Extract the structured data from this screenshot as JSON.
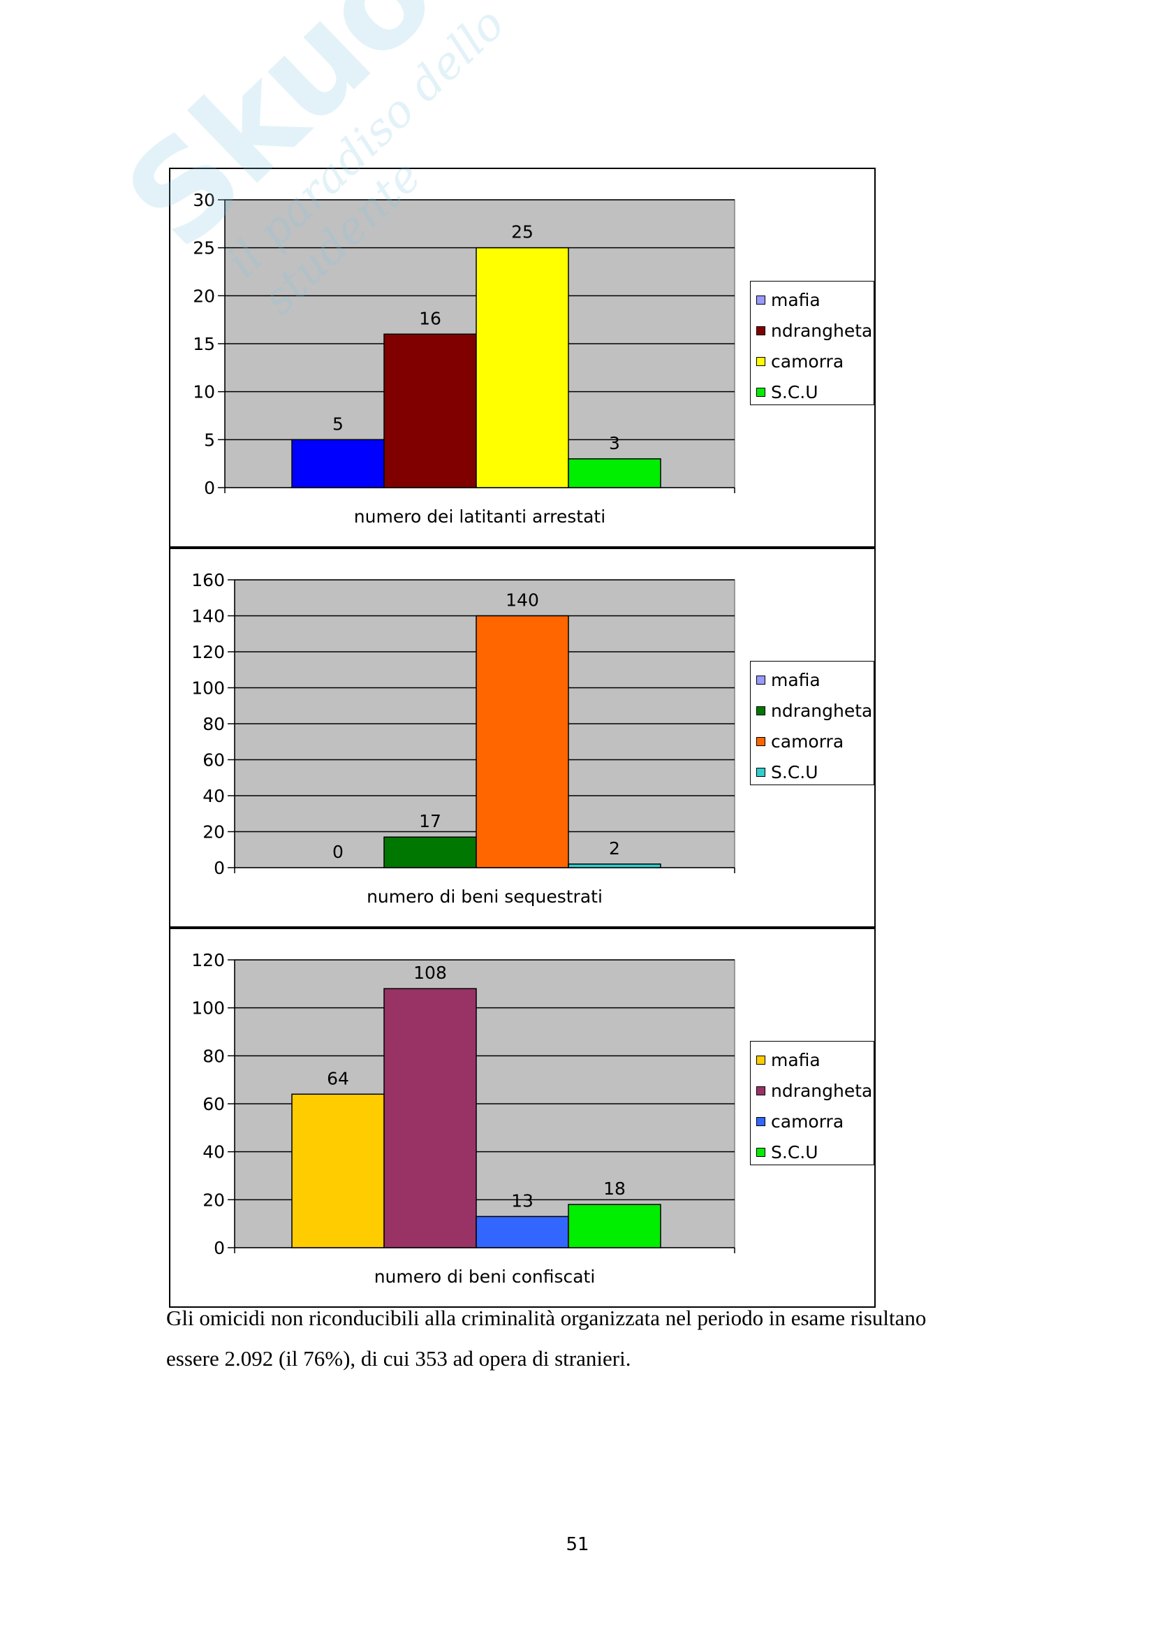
{
  "chart_data": [
    {
      "type": "bar",
      "xlabel": "numero dei latitanti arrestati",
      "categories": [
        "mafia",
        "ndrangheta",
        "camorra",
        "S.C.U"
      ],
      "values": [
        5,
        16,
        25,
        3
      ],
      "colors": [
        "#0000ff",
        "#800000",
        "#ffff00",
        "#00ee00"
      ],
      "value_labels": [
        "5",
        "16",
        "25",
        "3"
      ],
      "ylim": [
        0,
        30
      ],
      "yticks": [
        0,
        5,
        10,
        15,
        20,
        25,
        30
      ],
      "grid": true,
      "plot_background": "#c0c0c0",
      "legend": {
        "position": "right",
        "items": [
          {
            "label": "mafia",
            "color": "#9999ff"
          },
          {
            "label": "ndrangheta",
            "color": "#800000"
          },
          {
            "label": "camorra",
            "color": "#ffff00"
          },
          {
            "label": "S.C.U",
            "color": "#00ee00"
          }
        ]
      }
    },
    {
      "type": "bar",
      "xlabel": "numero di beni sequestrati",
      "categories": [
        "mafia",
        "ndrangheta",
        "camorra",
        "S.C.U"
      ],
      "values": [
        0,
        17,
        140,
        2
      ],
      "colors": [
        "#9999ff",
        "#007700",
        "#ff6600",
        "#33cccc"
      ],
      "value_labels": [
        "0",
        "17",
        "140",
        "2"
      ],
      "ylim": [
        0,
        160
      ],
      "yticks": [
        0,
        20,
        40,
        60,
        80,
        100,
        120,
        140,
        160
      ],
      "grid": true,
      "plot_background": "#c0c0c0",
      "legend": {
        "position": "right",
        "items": [
          {
            "label": "mafia",
            "color": "#9999ff"
          },
          {
            "label": "ndrangheta",
            "color": "#007700"
          },
          {
            "label": "camorra",
            "color": "#ff6600"
          },
          {
            "label": "S.C.U",
            "color": "#33cccc"
          }
        ]
      }
    },
    {
      "type": "bar",
      "xlabel": "numero di beni confiscati",
      "categories": [
        "mafia",
        "ndrangheta",
        "camorra",
        "S.C.U"
      ],
      "values": [
        64,
        108,
        13,
        18
      ],
      "colors": [
        "#ffcc00",
        "#993366",
        "#3366ff",
        "#00ee00"
      ],
      "value_labels": [
        "64",
        "108",
        "13",
        "18"
      ],
      "ylim": [
        0,
        120
      ],
      "yticks": [
        0,
        20,
        40,
        60,
        80,
        100,
        120
      ],
      "grid": true,
      "plot_background": "#c0c0c0",
      "legend": {
        "position": "right",
        "items": [
          {
            "label": "mafia",
            "color": "#ffcc00"
          },
          {
            "label": "ndrangheta",
            "color": "#993366"
          },
          {
            "label": "camorra",
            "color": "#3366ff"
          },
          {
            "label": "S.C.U",
            "color": "#00ee00"
          }
        ]
      }
    }
  ],
  "body_text": {
    "line1": "Gli omicidi non riconducibili alla criminalità organizzata nel periodo in esame risultano",
    "line2": "essere 2.092 (il 76%), di cui 353 ad opera di stranieri."
  },
  "page_number": "51",
  "watermark": {
    "brand": "Skuola.net",
    "tagline": "il paradiso dello studente",
    "color": "#7fc7e0"
  }
}
